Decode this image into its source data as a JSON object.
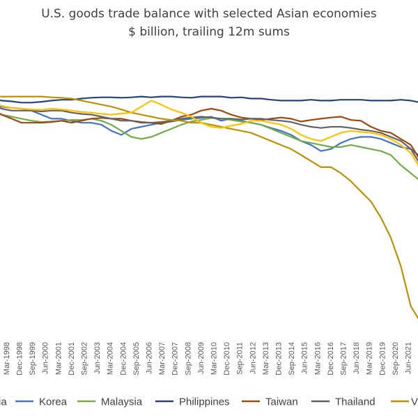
{
  "chart_data": {
    "type": "line",
    "title": "U.S. goods trade balance with selected Asian economies",
    "subtitle": "$ billion, trailing 12m sums",
    "x_labels": [
      "Mar-1998",
      "Dec-1998",
      "Sep-1999",
      "Jun-2000",
      "Mar-2001",
      "Dec-2001",
      "Sep-2002",
      "Jun-2003",
      "Mar-2004",
      "Dec-2004",
      "Sep-2005",
      "Jun-2006",
      "Mar-2007",
      "Dec-2007",
      "Sep-2008",
      "Jun-2009",
      "Mar-2010",
      "Dec-2010",
      "Sep-2011",
      "Jun-2012",
      "Mar-2013",
      "Dec-2013",
      "Sep-2014",
      "Jun-2015",
      "Mar-2016",
      "Dec-2016",
      "Sep-2017",
      "Jun-2018",
      "Mar-2019",
      "Dec-2019",
      "Sep-2020",
      "Jun-2021"
    ],
    "ylim": [
      -60,
      2
    ],
    "legend_position": "bottom",
    "legend_visible_text": [
      "ia",
      "Korea",
      "Malaysia",
      "Philippines",
      "Taiwan",
      "Thailand",
      "V"
    ],
    "series": [
      {
        "name": "Korea",
        "color": "#4472c4",
        "values": [
          -2,
          -2.5,
          -2.8,
          -3,
          -3.5,
          -4.5,
          -5.5,
          -5.5,
          -6,
          -6.5,
          -6.5,
          -7,
          -8.5,
          -9.5,
          -8,
          -7.5,
          -7,
          -6.5,
          -6.2,
          -5.8,
          -5.5,
          -5.3,
          -5,
          -6,
          -5.5,
          -6,
          -6.5,
          -7,
          -7.8,
          -8.5,
          -9.5,
          -11,
          -12,
          -13.5,
          -13,
          -11.5,
          -10.5,
          -10,
          -10,
          -10.5,
          -11.5,
          -12.5,
          -13,
          -15
        ]
      },
      {
        "name": "Malaysia",
        "color": "#70ad47",
        "values": [
          -3.5,
          -4.5,
          -5,
          -5.5,
          -6,
          -6.3,
          -6.2,
          -6,
          -5.8,
          -5.8,
          -5.5,
          -6,
          -7,
          -8.5,
          -10,
          -10.5,
          -10,
          -9,
          -8,
          -7,
          -6.2,
          -5.8,
          -5.3,
          -5.5,
          -5.8,
          -6.2,
          -6.5,
          -7,
          -8,
          -9,
          -10,
          -11,
          -11.5,
          -12,
          -12.5,
          -12.5,
          -12,
          -12.5,
          -13,
          -13.5,
          -14.5,
          -17,
          -19,
          -21
        ]
      },
      {
        "name": "Philippines",
        "color": "#264478",
        "values": [
          -0.5,
          -1,
          -1.2,
          -1.5,
          -1.5,
          -1.3,
          -1,
          -0.8,
          -0.8,
          -0.5,
          -0.3,
          -0.2,
          -0.2,
          -0.3,
          -0.2,
          0,
          -0.2,
          0,
          0,
          -0.2,
          -0.3,
          0,
          0,
          0,
          -0.3,
          -0.2,
          -0.5,
          -0.5,
          -0.8,
          -1,
          -1,
          -1,
          -0.8,
          -1,
          -1,
          -0.8,
          -0.8,
          -0.8,
          -1,
          -1,
          -1,
          -0.8,
          -1,
          -1.5
        ]
      },
      {
        "name": "Taiwan",
        "color": "#9e480e",
        "values": [
          -3,
          -4.5,
          -5.5,
          -6.5,
          -6.5,
          -6.5,
          -6.3,
          -6,
          -6.5,
          -6,
          -5.5,
          -5.3,
          -5.5,
          -5.5,
          -6,
          -6.5,
          -6.5,
          -6.8,
          -6,
          -5,
          -4.5,
          -3.5,
          -3,
          -3.5,
          -4.5,
          -5.2,
          -5.5,
          -5.8,
          -5.5,
          -5.2,
          -5.5,
          -6.2,
          -5.8,
          -5.5,
          -5.2,
          -5,
          -5.8,
          -6,
          -7.5,
          -8.5,
          -9,
          -10.5,
          -12,
          -16
        ]
      },
      {
        "name": "Thailand",
        "color": "#636363",
        "values": [
          -2,
          -3,
          -3.5,
          -3.5,
          -3.5,
          -3.7,
          -3.5,
          -3.5,
          -4,
          -4.3,
          -4.5,
          -5,
          -5.5,
          -6,
          -6,
          -6.3,
          -6.5,
          -6.3,
          -6,
          -5.5,
          -5.2,
          -5,
          -5.2,
          -5.5,
          -5.5,
          -5.7,
          -5.5,
          -5.5,
          -5.8,
          -6,
          -6.3,
          -7,
          -7.5,
          -7.8,
          -7.5,
          -7.5,
          -7.8,
          -8.2,
          -8.5,
          -9,
          -10,
          -11,
          -13,
          -17
        ]
      },
      {
        "name": "Vietnam",
        "color": "#bf9000",
        "values": [
          0,
          0,
          0,
          0,
          0,
          0,
          -0.2,
          -0.3,
          -0.5,
          -1,
          -1.5,
          -2,
          -2.5,
          -3.2,
          -4,
          -4.5,
          -5,
          -5.5,
          -5.8,
          -6,
          -6.5,
          -6.5,
          -7,
          -7.5,
          -8,
          -8.5,
          -9,
          -10,
          -11,
          -12,
          -13,
          -14.5,
          -16,
          -17.5,
          -17.5,
          -19,
          -21,
          -23.5,
          -26,
          -30,
          -35,
          -42,
          -52,
          -56
        ]
      },
      {
        "name": "",
        "color": "#ffc000",
        "values": [
          -1.8,
          -2.3,
          -2.8,
          -3,
          -3.2,
          -3.3,
          -3,
          -3.2,
          -3.5,
          -3.8,
          -4,
          -4.3,
          -4.5,
          -4.2,
          -4,
          -2.5,
          -1,
          -2,
          -3.2,
          -4,
          -5,
          -6.5,
          -7.5,
          -7.8,
          -7.2,
          -6.8,
          -6,
          -6,
          -6.5,
          -7,
          -8,
          -9.5,
          -10.5,
          -11,
          -10,
          -9,
          -8.5,
          -8.8,
          -9,
          -9.5,
          -10.5,
          -12,
          -14,
          -18
        ]
      }
    ]
  }
}
